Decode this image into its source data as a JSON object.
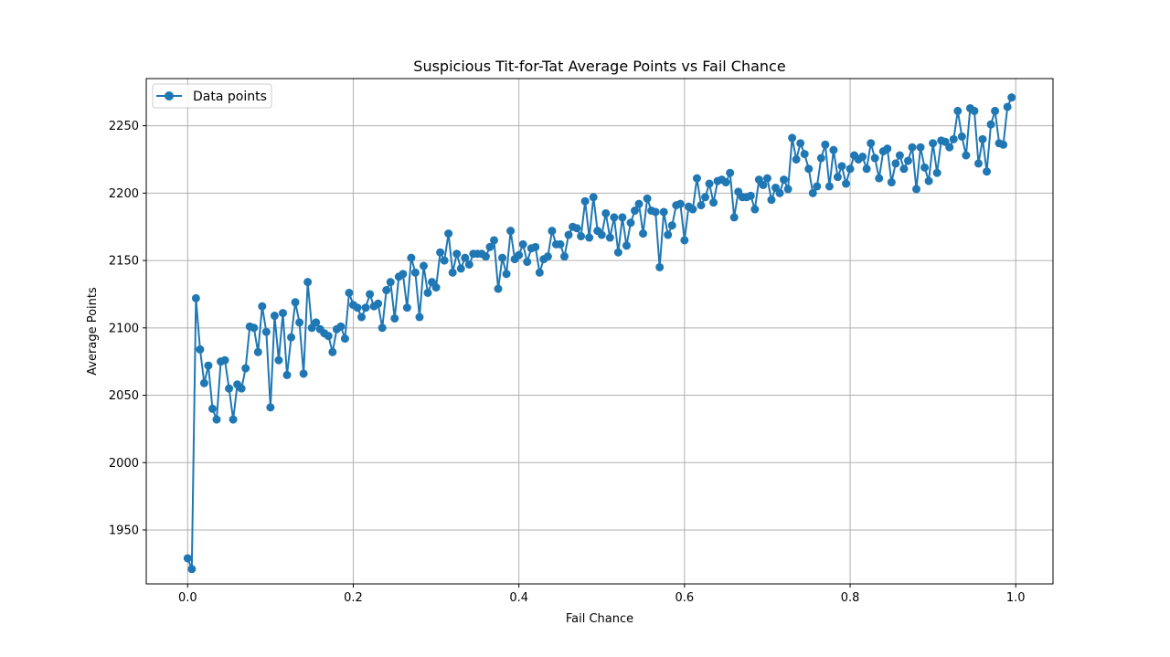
{
  "chart_data": {
    "type": "line",
    "title": "Suspicious Tit-for-Tat Average Points vs Fail Chance",
    "xlabel": "Fail Chance",
    "ylabel": "Average Points",
    "xlim": [
      -0.05,
      1.045
    ],
    "ylim": [
      1910,
      2285
    ],
    "xticks": [
      0.0,
      0.2,
      0.4,
      0.6,
      0.8,
      1.0
    ],
    "xtick_labels": [
      "0.0",
      "0.2",
      "0.4",
      "0.6",
      "0.8",
      "1.0"
    ],
    "yticks": [
      1950,
      2000,
      2050,
      2100,
      2150,
      2200,
      2250
    ],
    "ytick_labels": [
      "1950",
      "2000",
      "2050",
      "2100",
      "2150",
      "2200",
      "2250"
    ],
    "grid": true,
    "legend_position": "top-left",
    "series": [
      {
        "name": "Data points",
        "color": "#1f77b4",
        "marker": "circle",
        "x": [
          0.0,
          0.005,
          0.01,
          0.015,
          0.02,
          0.025,
          0.03,
          0.035,
          0.04,
          0.045,
          0.05,
          0.055,
          0.06,
          0.065,
          0.07,
          0.075,
          0.08,
          0.085,
          0.09,
          0.095,
          0.1,
          0.105,
          0.11,
          0.115,
          0.12,
          0.125,
          0.13,
          0.135,
          0.14,
          0.145,
          0.15,
          0.155,
          0.16,
          0.165,
          0.17,
          0.175,
          0.18,
          0.185,
          0.19,
          0.195,
          0.2,
          0.205,
          0.21,
          0.215,
          0.22,
          0.225,
          0.23,
          0.235,
          0.24,
          0.245,
          0.25,
          0.255,
          0.26,
          0.265,
          0.27,
          0.275,
          0.28,
          0.285,
          0.29,
          0.295,
          0.3,
          0.305,
          0.31,
          0.315,
          0.32,
          0.325,
          0.33,
          0.335,
          0.34,
          0.345,
          0.35,
          0.355,
          0.36,
          0.365,
          0.37,
          0.375,
          0.38,
          0.385,
          0.39,
          0.395,
          0.4,
          0.405,
          0.41,
          0.415,
          0.42,
          0.425,
          0.43,
          0.435,
          0.44,
          0.445,
          0.45,
          0.455,
          0.46,
          0.465,
          0.47,
          0.475,
          0.48,
          0.485,
          0.49,
          0.495,
          0.5,
          0.505,
          0.51,
          0.515,
          0.52,
          0.525,
          0.53,
          0.535,
          0.54,
          0.545,
          0.55,
          0.555,
          0.56,
          0.565,
          0.57,
          0.575,
          0.58,
          0.585,
          0.59,
          0.595,
          0.6,
          0.605,
          0.61,
          0.615,
          0.62,
          0.625,
          0.63,
          0.635,
          0.64,
          0.645,
          0.65,
          0.655,
          0.66,
          0.665,
          0.67,
          0.675,
          0.68,
          0.685,
          0.69,
          0.695,
          0.7,
          0.705,
          0.71,
          0.715,
          0.72,
          0.725,
          0.73,
          0.735,
          0.74,
          0.745,
          0.75,
          0.755,
          0.76,
          0.765,
          0.77,
          0.775,
          0.78,
          0.785,
          0.79,
          0.795,
          0.8,
          0.805,
          0.81,
          0.815,
          0.82,
          0.825,
          0.83,
          0.835,
          0.84,
          0.845,
          0.85,
          0.855,
          0.86,
          0.865,
          0.87,
          0.875,
          0.88,
          0.885,
          0.89,
          0.895,
          0.9,
          0.905,
          0.91,
          0.915,
          0.92,
          0.925,
          0.93,
          0.935,
          0.94,
          0.945,
          0.95,
          0.955,
          0.96,
          0.965,
          0.97,
          0.975,
          0.98,
          0.985,
          0.99,
          0.995
        ],
        "y": [
          1929,
          1921,
          2122,
          2084,
          2059,
          2072,
          2040,
          2032,
          2075,
          2076,
          2055,
          2032,
          2058,
          2055,
          2070,
          2101,
          2100,
          2082,
          2116,
          2097,
          2041,
          2109,
          2076,
          2111,
          2065,
          2093,
          2119,
          2104,
          2066,
          2134,
          2100,
          2104,
          2099,
          2096,
          2094,
          2082,
          2099,
          2101,
          2092,
          2126,
          2117,
          2115,
          2108,
          2115,
          2125,
          2116,
          2118,
          2100,
          2128,
          2134,
          2107,
          2138,
          2140,
          2115,
          2152,
          2141,
          2108,
          2146,
          2126,
          2134,
          2130,
          2156,
          2150,
          2170,
          2141,
          2155,
          2144,
          2152,
          2147,
          2155,
          2155,
          2155,
          2153,
          2160,
          2165,
          2129,
          2152,
          2140,
          2172,
          2151,
          2154,
          2162,
          2149,
          2159,
          2160,
          2141,
          2151,
          2153,
          2172,
          2162,
          2162,
          2153,
          2169,
          2175,
          2174,
          2168,
          2194,
          2167,
          2197,
          2172,
          2169,
          2185,
          2167,
          2182,
          2156,
          2182,
          2161,
          2178,
          2187,
          2192,
          2170,
          2196,
          2187,
          2186,
          2145,
          2186,
          2169,
          2176,
          2191,
          2192,
          2165,
          2190,
          2188,
          2211,
          2191,
          2197,
          2207,
          2193,
          2209,
          2210,
          2208,
          2215,
          2182,
          2201,
          2197,
          2197,
          2198,
          2188,
          2210,
          2206,
          2211,
          2195,
          2204,
          2200,
          2210,
          2203,
          2241,
          2225,
          2237,
          2229,
          2218,
          2200,
          2205,
          2226,
          2236,
          2205,
          2232,
          2212,
          2220,
          2207,
          2218,
          2228,
          2225,
          2227,
          2218,
          2237,
          2226,
          2211,
          2231,
          2233,
          2208,
          2222,
          2228,
          2218,
          2224,
          2234,
          2203,
          2234,
          2219,
          2209,
          2237,
          2215,
          2239,
          2238,
          2234,
          2240,
          2261,
          2242,
          2228,
          2263,
          2261,
          2222,
          2240,
          2216,
          2251,
          2261,
          2237,
          2236,
          2264,
          2271
        ]
      }
    ]
  }
}
